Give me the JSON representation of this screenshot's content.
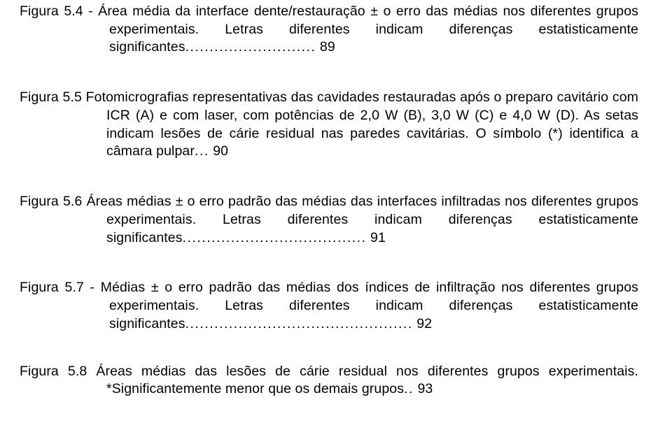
{
  "entries": [
    {
      "label": "Figura 5.4 - ",
      "text": "Área média da interface dente/restauração ± o erro das médias nos diferentes grupos experimentais. Letras diferentes indicam diferenças estatisticamente significantes",
      "leader": "...........................",
      "page": " 89"
    },
    {
      "label": "Figura 5.5 ",
      "text": "Fotomicrografias representativas das cavidades restauradas após o preparo cavitário com ICR (A) e com laser, com potências de 2,0 W (B), 3,0 W (C) e 4,0 W (D). As setas indicam lesões de cárie residual nas paredes cavitárias. O símbolo (*) identifica a câmara pulpar",
      "leader": "...",
      "page": " 90"
    },
    {
      "label": "Figura 5.6 ",
      "text": "Áreas médias ± o erro padrão das médias das interfaces infiltradas nos diferentes grupos experimentais. Letras diferentes indicam diferenças estatisticamente significantes",
      "leader": "......................................",
      "page": " 91"
    },
    {
      "label": "Figura 5.7 - ",
      "text": "Médias ± o erro padrão das médias dos índices de infiltração nos diferentes grupos experimentais. Letras diferentes indicam diferenças estatisticamente significantes",
      "leader": "...............................................",
      "page": " 92"
    },
    {
      "label": "Figura 5.8 ",
      "text": "Áreas médias das lesões de cárie residual nos diferentes grupos experimentais. *Significantemente menor que os demais grupos",
      "leader": "..",
      "page": " 93"
    }
  ]
}
